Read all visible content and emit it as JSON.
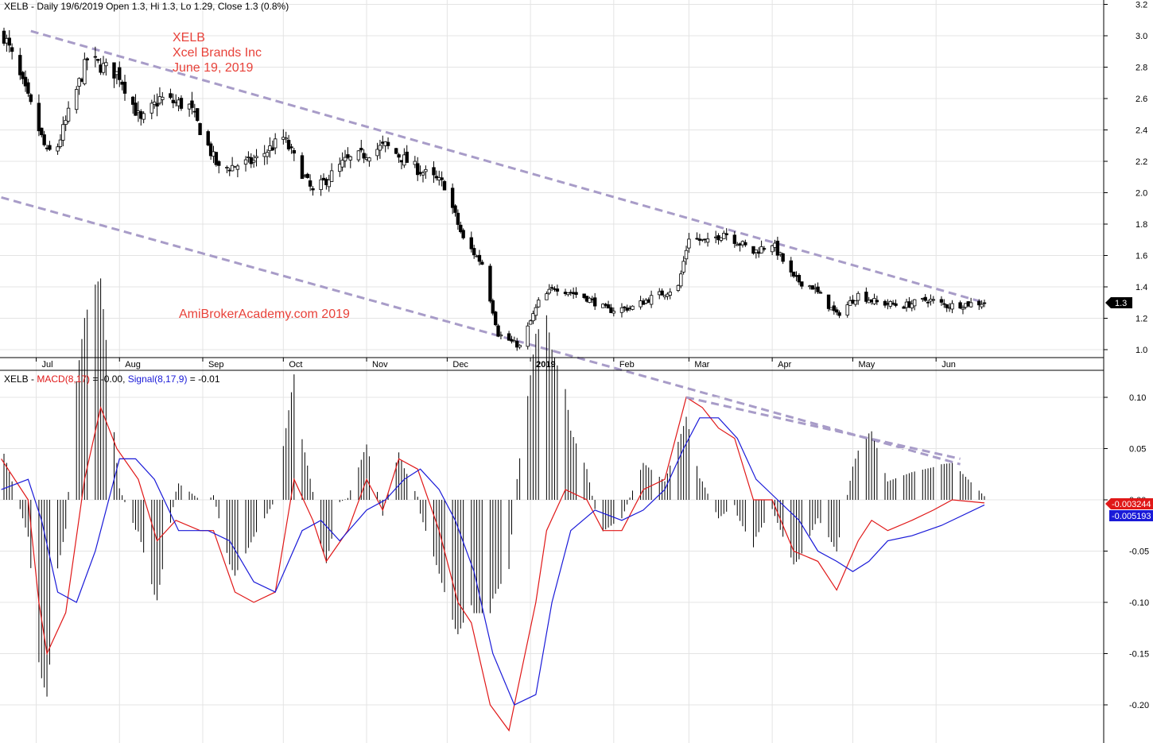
{
  "price_panel": {
    "header": {
      "symbol": "XELB",
      "text": "XELB - Daily 19/6/2019 Open 1.3, Hi 1.3, Lo 1.29, Close 1.3 (0.8%)"
    },
    "annotations": {
      "ticker": "XELB",
      "company": "Xcel Brands Inc",
      "date": "June 19, 2019",
      "watermark": "AmiBrokerAcademy.com  2019"
    },
    "last_price_tag": "1.3",
    "y_ticks": [
      "3.2",
      "3.0",
      "2.8",
      "2.6",
      "2.4",
      "2.2",
      "2.0",
      "1.8",
      "1.6",
      "1.4",
      "1.2",
      "1.0"
    ],
    "x_ticks": [
      "Jul",
      "Aug",
      "Sep",
      "Oct",
      "Nov",
      "Dec",
      "2019",
      "Feb",
      "Mar",
      "Apr",
      "May",
      "Jun"
    ]
  },
  "macd_panel": {
    "header": {
      "symbol": "XELB",
      "macd_label": "MACD(8,17)",
      "macd_value": " = -0.00, ",
      "signal_label": "Signal(8,17,9)",
      "signal_value": " = -0.01"
    },
    "macd_tag": "-0.003244",
    "signal_tag": "-0.005193",
    "y_ticks": [
      "0.10",
      "0.05",
      "0.00",
      "-0.05",
      "-0.10",
      "-0.15",
      "-0.20"
    ]
  },
  "colors": {
    "macd": "#e01818",
    "signal": "#1a1ad8",
    "trendline": "#a89cc8",
    "annotation": "#e8423a",
    "candle_down": "#000000",
    "candle_up": "#ffffff"
  },
  "chart_data": [
    {
      "type": "candlestick",
      "title": "XELB - Daily 19/6/2019 Open 1.3, Hi 1.3, Lo 1.29, Close 1.3 (0.8%)",
      "x_range": [
        "2018-06-19",
        "2019-06-19"
      ],
      "ylim": [
        0.95,
        3.25
      ],
      "grid": true,
      "anchors": [
        {
          "date": "2018-06-18",
          "close": 3.05
        },
        {
          "date": "2018-06-29",
          "close": 2.55
        },
        {
          "date": "2018-07-05",
          "close": 2.25
        },
        {
          "date": "2018-07-09",
          "close": 2.3
        },
        {
          "date": "2018-07-20",
          "close": 2.85
        },
        {
          "date": "2018-08-01",
          "close": 2.75
        },
        {
          "date": "2018-08-09",
          "close": 2.45
        },
        {
          "date": "2018-08-16",
          "close": 2.6
        },
        {
          "date": "2018-08-27",
          "close": 2.55
        },
        {
          "date": "2018-09-07",
          "close": 2.15
        },
        {
          "date": "2018-09-20",
          "close": 2.2
        },
        {
          "date": "2018-10-01",
          "close": 2.35
        },
        {
          "date": "2018-10-12",
          "close": 2.0
        },
        {
          "date": "2018-10-24",
          "close": 2.2
        },
        {
          "date": "2018-11-01",
          "close": 2.25
        },
        {
          "date": "2018-11-08",
          "close": 2.3
        },
        {
          "date": "2018-11-20",
          "close": 2.15
        },
        {
          "date": "2018-11-30",
          "close": 2.05
        },
        {
          "date": "2018-12-07",
          "close": 1.7
        },
        {
          "date": "2018-12-14",
          "close": 1.55
        },
        {
          "date": "2018-12-20",
          "close": 1.1
        },
        {
          "date": "2018-12-28",
          "close": 1.02
        },
        {
          "date": "2019-01-04",
          "close": 1.3
        },
        {
          "date": "2019-01-10",
          "close": 1.4
        },
        {
          "date": "2019-01-22",
          "close": 1.33
        },
        {
          "date": "2019-01-30",
          "close": 1.25
        },
        {
          "date": "2019-02-08",
          "close": 1.27
        },
        {
          "date": "2019-02-15",
          "close": 1.33
        },
        {
          "date": "2019-02-25",
          "close": 1.4
        },
        {
          "date": "2019-03-01",
          "close": 1.72
        },
        {
          "date": "2019-03-08",
          "close": 1.68
        },
        {
          "date": "2019-03-14",
          "close": 1.75
        },
        {
          "date": "2019-03-25",
          "close": 1.62
        },
        {
          "date": "2019-04-01",
          "close": 1.68
        },
        {
          "date": "2019-04-09",
          "close": 1.45
        },
        {
          "date": "2019-04-16",
          "close": 1.4
        },
        {
          "date": "2019-04-25",
          "close": 1.22
        },
        {
          "date": "2019-05-03",
          "close": 1.35
        },
        {
          "date": "2019-05-10",
          "close": 1.3
        },
        {
          "date": "2019-05-20",
          "close": 1.28
        },
        {
          "date": "2019-05-29",
          "close": 1.32
        },
        {
          "date": "2019-06-05",
          "close": 1.28
        },
        {
          "date": "2019-06-19",
          "close": 1.3
        }
      ],
      "trendlines": [
        {
          "from": {
            "date": "2018-06-29",
            "price": 3.03
          },
          "to": {
            "date": "2019-06-19",
            "price": 1.3
          }
        },
        {
          "from": {
            "date": "2018-06-18",
            "price": 1.97
          },
          "to": {
            "date": "2019-06-10",
            "price": 0.27
          }
        }
      ]
    },
    {
      "type": "line",
      "title": "XELB - MACD(8,17) = -0.00, Signal(8,17,9) = -0.01",
      "ylim": [
        -0.235,
        0.12
      ],
      "series": [
        {
          "name": "MACD(8,17)",
          "color": "#e01818",
          "points": [
            {
              "date": "2018-06-18",
              "v": 0.04
            },
            {
              "date": "2018-06-28",
              "v": 0.0
            },
            {
              "date": "2018-07-02",
              "v": -0.1
            },
            {
              "date": "2018-07-05",
              "v": -0.15
            },
            {
              "date": "2018-07-12",
              "v": -0.11
            },
            {
              "date": "2018-07-19",
              "v": 0.02
            },
            {
              "date": "2018-07-25",
              "v": 0.09
            },
            {
              "date": "2018-07-31",
              "v": 0.05
            },
            {
              "date": "2018-08-08",
              "v": 0.02
            },
            {
              "date": "2018-08-15",
              "v": -0.04
            },
            {
              "date": "2018-08-22",
              "v": -0.02
            },
            {
              "date": "2018-08-31",
              "v": -0.03
            },
            {
              "date": "2018-09-05",
              "v": -0.03
            },
            {
              "date": "2018-09-13",
              "v": -0.09
            },
            {
              "date": "2018-09-20",
              "v": -0.1
            },
            {
              "date": "2018-09-28",
              "v": -0.09
            },
            {
              "date": "2018-10-05",
              "v": 0.02
            },
            {
              "date": "2018-10-12",
              "v": -0.02
            },
            {
              "date": "2018-10-17",
              "v": -0.06
            },
            {
              "date": "2018-10-25",
              "v": -0.03
            },
            {
              "date": "2018-11-01",
              "v": 0.02
            },
            {
              "date": "2018-11-07",
              "v": -0.01
            },
            {
              "date": "2018-11-13",
              "v": 0.04
            },
            {
              "date": "2018-11-20",
              "v": 0.03
            },
            {
              "date": "2018-11-28",
              "v": -0.03
            },
            {
              "date": "2018-12-05",
              "v": -0.1
            },
            {
              "date": "2018-12-10",
              "v": -0.12
            },
            {
              "date": "2018-12-17",
              "v": -0.2
            },
            {
              "date": "2018-12-24",
              "v": -0.225
            },
            {
              "date": "2019-01-03",
              "v": -0.1
            },
            {
              "date": "2019-01-07",
              "v": -0.03
            },
            {
              "date": "2019-01-14",
              "v": 0.01
            },
            {
              "date": "2019-01-22",
              "v": 0.0
            },
            {
              "date": "2019-01-28",
              "v": -0.03
            },
            {
              "date": "2019-02-04",
              "v": -0.03
            },
            {
              "date": "2019-02-12",
              "v": 0.01
            },
            {
              "date": "2019-02-20",
              "v": 0.02
            },
            {
              "date": "2019-02-28",
              "v": 0.1
            },
            {
              "date": "2019-03-06",
              "v": 0.09
            },
            {
              "date": "2019-03-12",
              "v": 0.07
            },
            {
              "date": "2019-03-18",
              "v": 0.06
            },
            {
              "date": "2019-03-25",
              "v": 0.0
            },
            {
              "date": "2019-04-01",
              "v": 0.0
            },
            {
              "date": "2019-04-09",
              "v": -0.05
            },
            {
              "date": "2019-04-18",
              "v": -0.06
            },
            {
              "date": "2019-04-25",
              "v": -0.088
            },
            {
              "date": "2019-05-03",
              "v": -0.04
            },
            {
              "date": "2019-05-08",
              "v": -0.02
            },
            {
              "date": "2019-05-14",
              "v": -0.03
            },
            {
              "date": "2019-05-23",
              "v": -0.02
            },
            {
              "date": "2019-05-31",
              "v": -0.01
            },
            {
              "date": "2019-06-07",
              "v": 0.0
            },
            {
              "date": "2019-06-19",
              "v": -0.003
            }
          ]
        },
        {
          "name": "Signal(8,17,9)",
          "color": "#1a1ad8",
          "points": [
            {
              "date": "2018-06-18",
              "v": 0.01
            },
            {
              "date": "2018-06-28",
              "v": 0.02
            },
            {
              "date": "2018-07-03",
              "v": -0.02
            },
            {
              "date": "2018-07-09",
              "v": -0.09
            },
            {
              "date": "2018-07-16",
              "v": -0.1
            },
            {
              "date": "2018-07-23",
              "v": -0.05
            },
            {
              "date": "2018-08-01",
              "v": 0.04
            },
            {
              "date": "2018-08-07",
              "v": 0.04
            },
            {
              "date": "2018-08-14",
              "v": 0.02
            },
            {
              "date": "2018-08-23",
              "v": -0.03
            },
            {
              "date": "2018-09-03",
              "v": -0.03
            },
            {
              "date": "2018-09-11",
              "v": -0.04
            },
            {
              "date": "2018-09-20",
              "v": -0.08
            },
            {
              "date": "2018-09-28",
              "v": -0.09
            },
            {
              "date": "2018-10-08",
              "v": -0.03
            },
            {
              "date": "2018-10-15",
              "v": -0.02
            },
            {
              "date": "2018-10-22",
              "v": -0.04
            },
            {
              "date": "2018-11-01",
              "v": -0.01
            },
            {
              "date": "2018-11-08",
              "v": 0.0
            },
            {
              "date": "2018-11-15",
              "v": 0.02
            },
            {
              "date": "2018-11-21",
              "v": 0.03
            },
            {
              "date": "2018-11-28",
              "v": 0.01
            },
            {
              "date": "2018-12-04",
              "v": -0.02
            },
            {
              "date": "2018-12-11",
              "v": -0.07
            },
            {
              "date": "2018-12-18",
              "v": -0.15
            },
            {
              "date": "2018-12-26",
              "v": -0.2
            },
            {
              "date": "2019-01-03",
              "v": -0.19
            },
            {
              "date": "2019-01-09",
              "v": -0.1
            },
            {
              "date": "2019-01-16",
              "v": -0.03
            },
            {
              "date": "2019-01-25",
              "v": -0.01
            },
            {
              "date": "2019-02-04",
              "v": -0.02
            },
            {
              "date": "2019-02-12",
              "v": -0.01
            },
            {
              "date": "2019-02-20",
              "v": 0.01
            },
            {
              "date": "2019-02-27",
              "v": 0.05
            },
            {
              "date": "2019-03-05",
              "v": 0.08
            },
            {
              "date": "2019-03-12",
              "v": 0.08
            },
            {
              "date": "2019-03-19",
              "v": 0.06
            },
            {
              "date": "2019-03-26",
              "v": 0.02
            },
            {
              "date": "2019-04-03",
              "v": 0.0
            },
            {
              "date": "2019-04-11",
              "v": -0.02
            },
            {
              "date": "2019-04-18",
              "v": -0.05
            },
            {
              "date": "2019-04-25",
              "v": -0.06
            },
            {
              "date": "2019-05-01",
              "v": -0.07
            },
            {
              "date": "2019-05-07",
              "v": -0.06
            },
            {
              "date": "2019-05-14",
              "v": -0.04
            },
            {
              "date": "2019-05-23",
              "v": -0.035
            },
            {
              "date": "2019-06-03",
              "v": -0.025
            },
            {
              "date": "2019-06-19",
              "v": -0.005
            }
          ]
        }
      ],
      "histogram": "MACD minus Signal, drawn as vertical bars from the zero line",
      "trendlines": [
        {
          "from": {
            "date": "2019-02-28",
            "v": 0.1
          },
          "to": {
            "date": "2019-06-10",
            "v": 0.04
          }
        }
      ]
    }
  ]
}
